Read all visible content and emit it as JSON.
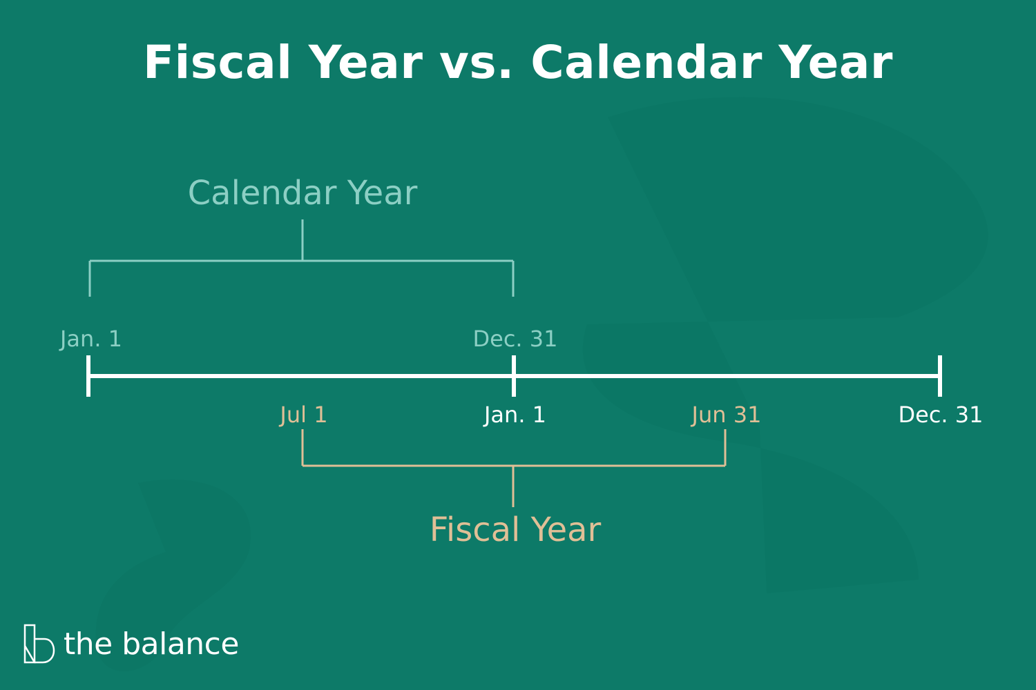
{
  "title": "Fiscal Year vs. Calendar Year",
  "calendar_year": {
    "label": "Calendar Year",
    "start_label": "Jan. 1",
    "end_label": "Dec. 31",
    "color": "#8ccfc4"
  },
  "fiscal_year": {
    "label": "Fiscal Year",
    "start_label": "Jul 1",
    "end_label": "Jun 31",
    "color": "#e0bf96"
  },
  "second_year": {
    "start_label": "Jan. 1",
    "end_label": "Dec. 31"
  },
  "brand": {
    "name": "the balance",
    "icon": "the-balance-logo-icon"
  },
  "colors": {
    "background": "#0d7a68",
    "timeline": "#ffffff"
  }
}
